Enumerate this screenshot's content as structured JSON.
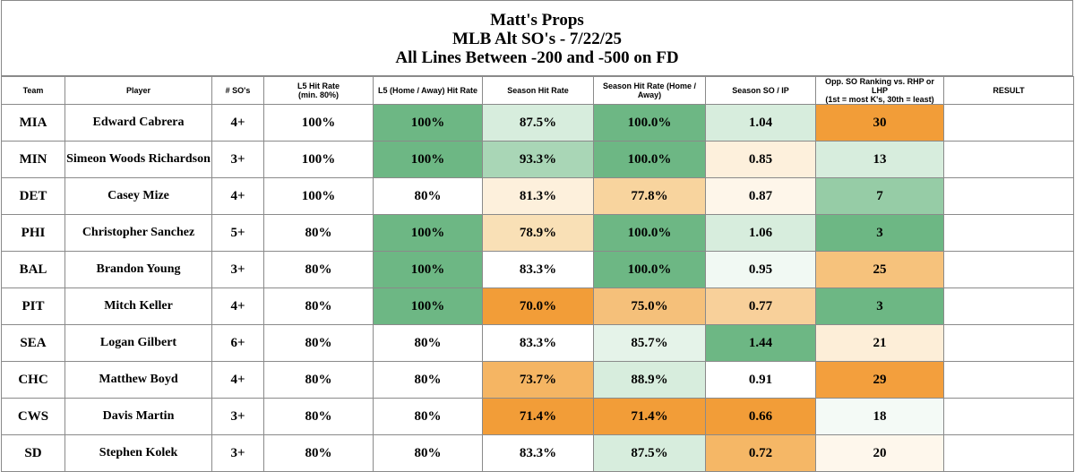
{
  "header": {
    "line1": "Matt's Props",
    "line2": "MLB Alt SO's - 7/22/25",
    "line3": "All Lines Between -200 and -500 on FD"
  },
  "columns": [
    [
      "Team"
    ],
    [
      "Player"
    ],
    [
      "# SO's"
    ],
    [
      "L5 Hit Rate",
      "(min. 80%)"
    ],
    [
      "L5 (Home / Away) Hit Rate"
    ],
    [
      "Season Hit Rate"
    ],
    [
      "Season Hit Rate (Home / Away)"
    ],
    [
      "Season SO / IP"
    ],
    [
      "Opp. SO Ranking vs. RHP or LHP",
      "(1st = most K's, 30th = least)"
    ],
    [
      "RESULT"
    ]
  ],
  "rows": [
    {
      "cells": [
        "MIA",
        "Edward Cabrera",
        "4+",
        "100%",
        "100%",
        "87.5%",
        "100.0%",
        "1.04",
        "30",
        ""
      ],
      "colors": [
        "",
        "",
        "",
        "",
        "#6db784",
        "#d7eddd",
        "#6db784",
        "#d7eddd",
        "#f29d38",
        ""
      ]
    },
    {
      "cells": [
        "MIN",
        "Simeon Woods Richardson",
        "3+",
        "100%",
        "100%",
        "93.3%",
        "100.0%",
        "0.85",
        "13",
        ""
      ],
      "colors": [
        "",
        "",
        "",
        "",
        "#6db784",
        "#a9d6b6",
        "#6db784",
        "#fdf0dc",
        "#d7eddd",
        ""
      ]
    },
    {
      "cells": [
        "DET",
        "Casey Mize",
        "4+",
        "100%",
        "80%",
        "81.3%",
        "77.8%",
        "0.87",
        "7",
        ""
      ],
      "colors": [
        "",
        "",
        "",
        "",
        "",
        "#fdf0dc",
        "#f8d49e",
        "#fef6ea",
        "#96cca6",
        ""
      ]
    },
    {
      "cells": [
        "PHI",
        "Christopher Sanchez",
        "5+",
        "80%",
        "100%",
        "78.9%",
        "100.0%",
        "1.06",
        "3",
        ""
      ],
      "colors": [
        "",
        "",
        "",
        "",
        "#6db784",
        "#f9e0b6",
        "#6db784",
        "#d7eddd",
        "#6db784",
        ""
      ]
    },
    {
      "cells": [
        "BAL",
        "Brandon Young",
        "3+",
        "80%",
        "100%",
        "83.3%",
        "100.0%",
        "0.95",
        "25",
        ""
      ],
      "colors": [
        "",
        "",
        "",
        "",
        "#6db784",
        "",
        "#6db784",
        "#f1f9f3",
        "#f6c27c",
        ""
      ]
    },
    {
      "cells": [
        "PIT",
        "Mitch Keller",
        "4+",
        "80%",
        "100%",
        "70.0%",
        "75.0%",
        "0.77",
        "3",
        ""
      ],
      "colors": [
        "",
        "",
        "",
        "",
        "#6db784",
        "#f29d38",
        "#f5c07a",
        "#f8d09a",
        "#6db784",
        ""
      ]
    },
    {
      "cells": [
        "SEA",
        "Logan Gilbert",
        "6+",
        "80%",
        "80%",
        "83.3%",
        "85.7%",
        "1.44",
        "21",
        ""
      ],
      "colors": [
        "",
        "",
        "",
        "",
        "",
        "",
        "#e5f3e9",
        "#6db784",
        "#fdeed8",
        ""
      ]
    },
    {
      "cells": [
        "CHC",
        "Matthew Boyd",
        "4+",
        "80%",
        "80%",
        "73.7%",
        "88.9%",
        "0.91",
        "29",
        ""
      ],
      "colors": [
        "",
        "",
        "",
        "",
        "",
        "#f5b563",
        "#d7eddd",
        "",
        "#f39f3d",
        ""
      ]
    },
    {
      "cells": [
        "CWS",
        "Davis Martin",
        "3+",
        "80%",
        "80%",
        "71.4%",
        "71.4%",
        "0.66",
        "18",
        ""
      ],
      "colors": [
        "",
        "",
        "",
        "",
        "",
        "#f29d38",
        "#f29d38",
        "#f29d38",
        "#f4faf6",
        ""
      ]
    },
    {
      "cells": [
        "SD",
        "Stephen Kolek",
        "3+",
        "80%",
        "80%",
        "83.3%",
        "87.5%",
        "0.72",
        "20",
        ""
      ],
      "colors": [
        "",
        "",
        "",
        "",
        "",
        "",
        "#d7eddd",
        "#f5b766",
        "#fef7ec",
        ""
      ]
    }
  ]
}
